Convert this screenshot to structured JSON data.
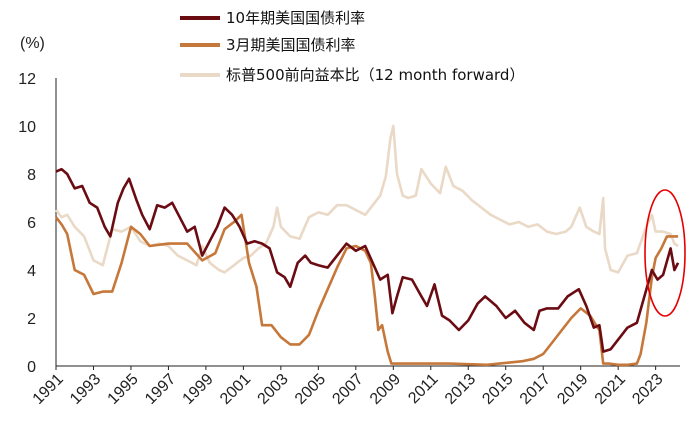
{
  "chart_data": {
    "type": "line",
    "unit_label": "(%)",
    "ylim": [
      0,
      12
    ],
    "yticks": [
      0,
      2,
      4,
      6,
      8,
      10,
      12
    ],
    "xlim": [
      1991,
      2024.3
    ],
    "xticks": [
      "1991",
      "1993",
      "1995",
      "1997",
      "1999",
      "2001",
      "2003",
      "2005",
      "2007",
      "2009",
      "2011",
      "2013",
      "2015",
      "2017",
      "2019",
      "2021",
      "2023"
    ],
    "grid": false,
    "legend_position": "top-center",
    "series": [
      {
        "name": "10年期美国国债利率",
        "color": "#6b0b12",
        "x": [
          1991.0,
          1991.3,
          1991.6,
          1992.0,
          1992.4,
          1992.8,
          1993.2,
          1993.6,
          1993.9,
          1994.3,
          1994.6,
          1994.9,
          1995.3,
          1995.6,
          1996.0,
          1996.4,
          1996.8,
          1997.2,
          1997.6,
          1998.0,
          1998.4,
          1998.8,
          1999.2,
          1999.6,
          2000.0,
          2000.4,
          2000.8,
          2001.2,
          2001.6,
          2002.0,
          2002.4,
          2002.8,
          2003.2,
          2003.5,
          2003.9,
          2004.3,
          2004.6,
          2005.0,
          2005.5,
          2006.0,
          2006.5,
          2007.0,
          2007.5,
          2007.9,
          2008.3,
          2008.7,
          2008.95,
          2009.2,
          2009.5,
          2010.0,
          2010.5,
          2010.8,
          2011.2,
          2011.6,
          2012.0,
          2012.5,
          2013.0,
          2013.5,
          2013.9,
          2014.5,
          2015.0,
          2015.5,
          2016.0,
          2016.5,
          2016.8,
          2017.2,
          2017.8,
          2018.3,
          2018.9,
          2019.3,
          2019.7,
          2020.0,
          2020.2,
          2020.6,
          2021.0,
          2021.5,
          2022.0,
          2022.4,
          2022.8,
          2023.1,
          2023.4,
          2023.8,
          2024.0,
          2024.2
        ],
        "values": [
          8.1,
          8.2,
          8.0,
          7.4,
          7.5,
          6.8,
          6.6,
          5.8,
          5.4,
          6.8,
          7.4,
          7.8,
          6.9,
          6.3,
          5.7,
          6.7,
          6.6,
          6.8,
          6.2,
          5.6,
          5.8,
          4.6,
          5.2,
          5.8,
          6.6,
          6.3,
          5.8,
          5.1,
          5.2,
          5.1,
          4.9,
          3.9,
          3.7,
          3.3,
          4.3,
          4.6,
          4.3,
          4.2,
          4.1,
          4.6,
          5.1,
          4.8,
          5.0,
          4.3,
          3.6,
          3.8,
          2.2,
          2.9,
          3.7,
          3.6,
          2.9,
          2.5,
          3.4,
          2.1,
          1.9,
          1.5,
          1.9,
          2.6,
          2.9,
          2.5,
          2.0,
          2.3,
          1.8,
          1.5,
          2.3,
          2.4,
          2.4,
          2.9,
          3.2,
          2.5,
          1.6,
          1.7,
          0.6,
          0.7,
          1.1,
          1.6,
          1.8,
          2.9,
          4.0,
          3.6,
          3.8,
          4.9,
          4.0,
          4.3
        ]
      },
      {
        "name": "3月期美国国债利率",
        "color": "#c6773a",
        "x": [
          1991.0,
          1991.3,
          1991.6,
          1992.0,
          1992.5,
          1993.0,
          1993.5,
          1994.0,
          1994.5,
          1995.0,
          1995.5,
          1996.0,
          1997.0,
          1998.0,
          1998.8,
          1999.5,
          2000.0,
          2000.5,
          2000.9,
          2001.3,
          2001.7,
          2002.0,
          2002.5,
          2003.0,
          2003.5,
          2004.0,
          2004.5,
          2005.0,
          2005.5,
          2006.0,
          2006.5,
          2007.0,
          2007.5,
          2007.8,
          2008.0,
          2008.2,
          2008.4,
          2008.7,
          2008.9,
          2009.0,
          2010.0,
          2012.0,
          2014.0,
          2015.9,
          2016.5,
          2017.0,
          2017.5,
          2018.0,
          2018.5,
          2019.0,
          2019.5,
          2019.9,
          2020.0,
          2020.2,
          2020.5,
          2021.0,
          2021.5,
          2022.0,
          2022.2,
          2022.5,
          2022.8,
          2023.0,
          2023.3,
          2023.6,
          2024.0,
          2024.2
        ],
        "values": [
          6.2,
          5.9,
          5.5,
          4.0,
          3.8,
          3.0,
          3.1,
          3.1,
          4.3,
          5.8,
          5.5,
          5.0,
          5.1,
          5.1,
          4.4,
          4.7,
          5.7,
          6.0,
          6.3,
          4.3,
          3.3,
          1.7,
          1.7,
          1.2,
          0.9,
          0.9,
          1.3,
          2.3,
          3.2,
          4.1,
          4.9,
          5.0,
          4.8,
          4.3,
          3.0,
          1.5,
          1.7,
          0.6,
          0.1,
          0.1,
          0.1,
          0.1,
          0.05,
          0.2,
          0.3,
          0.5,
          1.0,
          1.5,
          2.0,
          2.4,
          2.1,
          1.6,
          1.5,
          0.1,
          0.1,
          0.05,
          0.05,
          0.1,
          0.5,
          1.8,
          3.7,
          4.5,
          4.9,
          5.4,
          5.4,
          5.4
        ]
      },
      {
        "name": "标普500前向益本比（12 month forward）",
        "color": "#ead9c6",
        "x": [
          1991.0,
          1991.3,
          1991.6,
          1992.0,
          1992.5,
          1993.0,
          1993.5,
          1994.0,
          1994.5,
          1995.0,
          1995.5,
          1996.0,
          1996.5,
          1997.0,
          1997.5,
          1998.0,
          1998.5,
          1998.8,
          1999.2,
          1999.7,
          2000.0,
          2000.5,
          2001.0,
          2001.4,
          2001.8,
          2002.2,
          2002.6,
          2002.8,
          2003.0,
          2003.5,
          2004.0,
          2004.5,
          2005.0,
          2005.5,
          2006.0,
          2006.5,
          2007.0,
          2007.5,
          2008.0,
          2008.3,
          2008.6,
          2008.85,
          2009.0,
          2009.2,
          2009.5,
          2009.8,
          2010.2,
          2010.5,
          2011.0,
          2011.5,
          2011.8,
          2012.2,
          2012.7,
          2013.2,
          2013.7,
          2014.2,
          2014.7,
          2015.2,
          2015.7,
          2016.2,
          2016.7,
          2017.2,
          2017.7,
          2018.2,
          2018.5,
          2018.95,
          2019.3,
          2019.7,
          2020.0,
          2020.2,
          2020.3,
          2020.6,
          2021.0,
          2021.5,
          2022.0,
          2022.5,
          2022.8,
          2023.0,
          2023.4,
          2023.8,
          2024.0,
          2024.2
        ],
        "values": [
          6.5,
          6.2,
          6.3,
          5.8,
          5.4,
          4.4,
          4.2,
          5.7,
          5.6,
          5.8,
          5.2,
          5.0,
          5.1,
          5.0,
          4.6,
          4.4,
          4.2,
          5.0,
          4.3,
          4.0,
          3.9,
          4.2,
          4.5,
          4.6,
          4.9,
          5.1,
          5.8,
          6.6,
          5.8,
          5.4,
          5.3,
          6.2,
          6.4,
          6.3,
          6.7,
          6.7,
          6.5,
          6.3,
          6.8,
          7.1,
          7.9,
          9.5,
          10.0,
          8.0,
          7.1,
          7.0,
          7.1,
          8.2,
          7.6,
          7.2,
          8.3,
          7.5,
          7.3,
          6.9,
          6.6,
          6.3,
          6.1,
          5.9,
          6.0,
          5.8,
          5.9,
          5.6,
          5.5,
          5.6,
          5.8,
          6.6,
          5.8,
          5.6,
          5.5,
          7.0,
          4.9,
          4.0,
          3.9,
          4.6,
          4.7,
          5.8,
          6.3,
          5.6,
          5.6,
          5.5,
          5.1,
          5.0
        ]
      }
    ],
    "annotation": "red ellipse highlighting 2023"
  }
}
